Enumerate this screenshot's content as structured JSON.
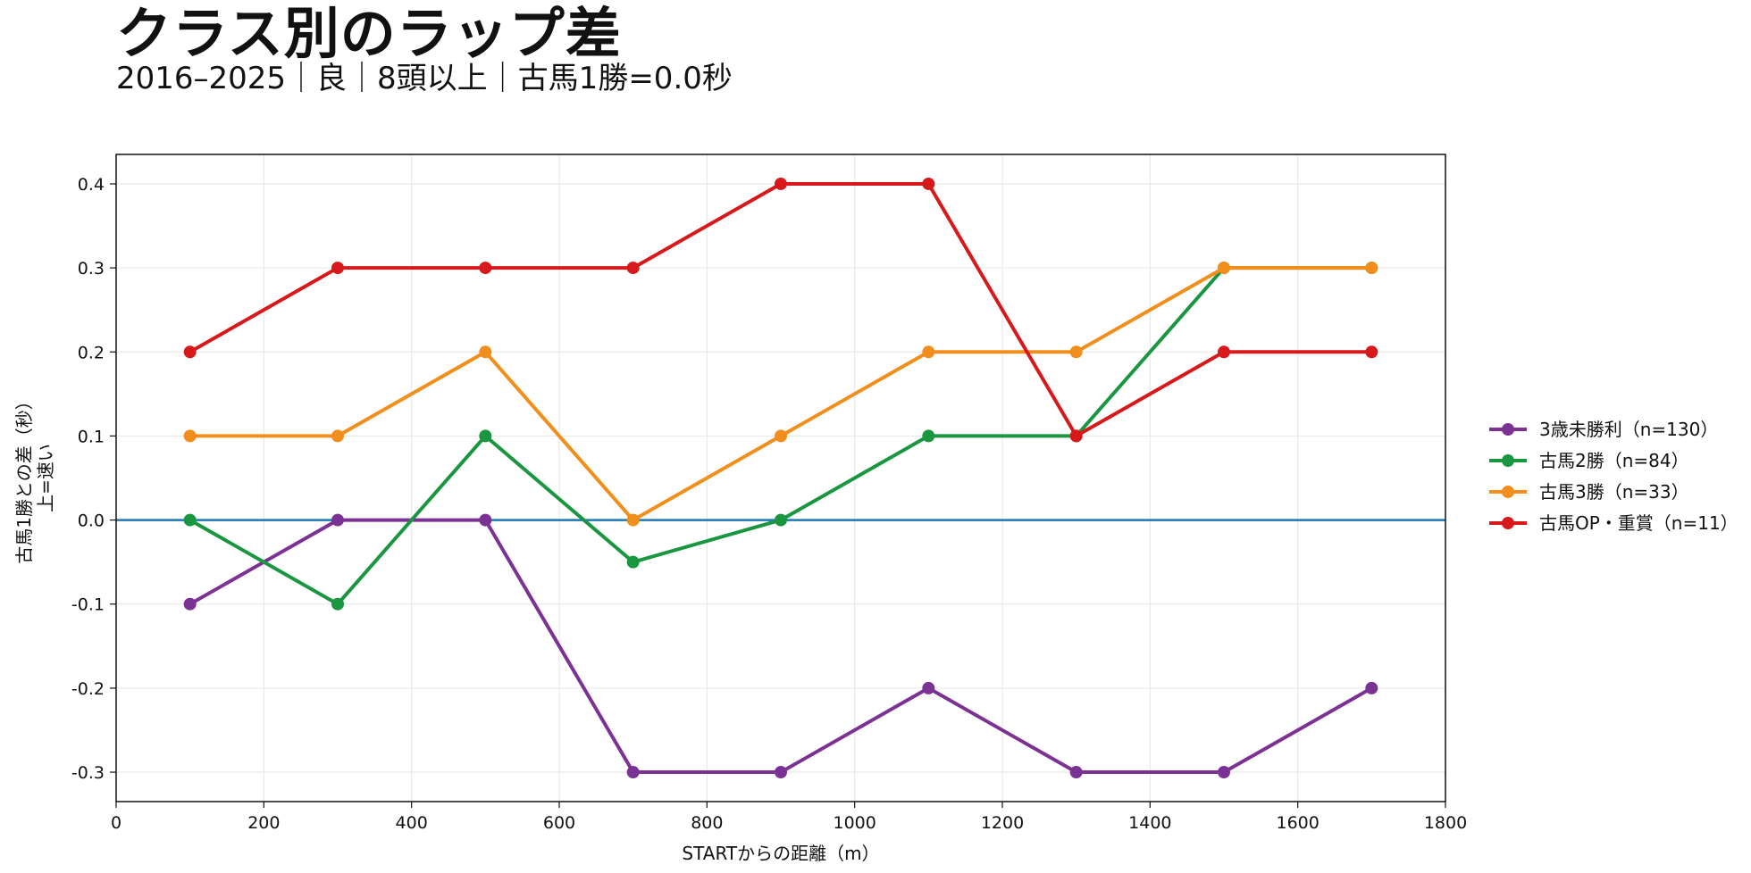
{
  "title": "クラス別のラップ差",
  "subtitle": "2016–2025｜良｜8頭以上｜古馬1勝=0.0秒",
  "chart_data": {
    "type": "line",
    "x": [
      100,
      300,
      500,
      700,
      900,
      1100,
      1300,
      1500,
      1700
    ],
    "xlabel": "STARTからの距離（m）",
    "ylabel_lines": [
      "古馬1勝との差（秒）",
      "上=速い"
    ],
    "xlim": [
      0,
      1800
    ],
    "ylim": [
      -0.335,
      0.435
    ],
    "xticks": [
      0,
      200,
      400,
      600,
      800,
      1000,
      1200,
      1400,
      1600,
      1800
    ],
    "yticks": [
      -0.3,
      -0.2,
      -0.1,
      0.0,
      0.1,
      0.2,
      0.3,
      0.4
    ],
    "ytick_labels": [
      "-0.3",
      "-0.2",
      "-0.1",
      "0.0",
      "0.1",
      "0.2",
      "0.3",
      "0.4"
    ],
    "grid": true,
    "reference_line": {
      "y": 0.0,
      "color": "#1f77b4"
    },
    "legend_position": "right",
    "series": [
      {
        "name": "3歳未勝利（n=130）",
        "color": "#7b3294",
        "values": [
          -0.1,
          0.0,
          0.0,
          -0.3,
          -0.3,
          -0.2,
          -0.3,
          -0.3,
          -0.2
        ]
      },
      {
        "name": "古馬2勝（n=84）",
        "color": "#1a9641",
        "values": [
          0.0,
          -0.1,
          0.1,
          -0.05,
          0.0,
          0.1,
          0.1,
          0.3,
          0.3
        ]
      },
      {
        "name": "古馬3勝（n=33）",
        "color": "#f28e1c",
        "values": [
          0.1,
          0.1,
          0.2,
          0.0,
          0.1,
          0.2,
          0.2,
          0.3,
          0.3
        ]
      },
      {
        "name": "古馬OP・重賞（n=11）",
        "color": "#d7191c",
        "values": [
          0.2,
          0.3,
          0.3,
          0.3,
          0.4,
          0.4,
          0.1,
          0.2,
          0.2
        ]
      }
    ]
  }
}
